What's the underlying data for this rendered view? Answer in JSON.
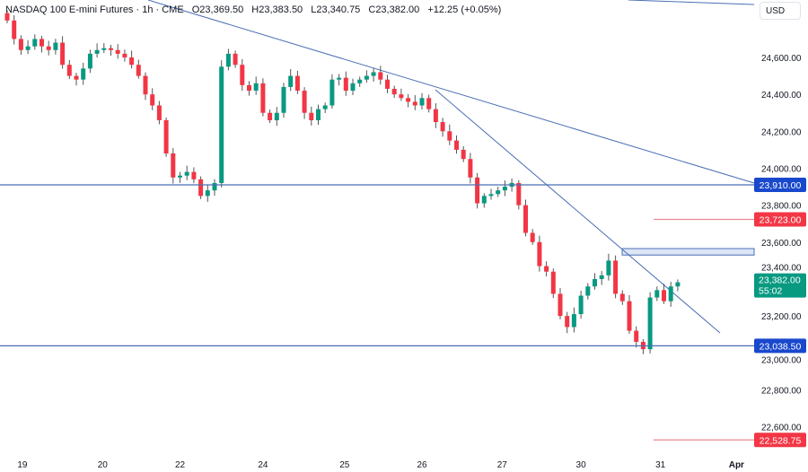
{
  "header": {
    "symbol": "NASDAQ 100 E-mini Futures · 1h · CME",
    "open": "O23,369.50",
    "high": "H23,383.50",
    "low": "L23,340.75",
    "close": "C23,382.00",
    "change": "+12.25 (+0.05%)"
  },
  "currency_button": "USD",
  "colors": {
    "up": "#089981",
    "down": "#f23645",
    "line": "#4a6fb5",
    "blue_label": "#1848cc",
    "red_label": "#f23645",
    "green_label": "#089981"
  },
  "chart_data": {
    "type": "candlestick",
    "title": "NASDAQ 100 E-mini Futures · 1h · CME",
    "ylim": [
      22460,
      24870
    ],
    "y_ticks": [
      "24,600.00",
      "24,400.00",
      "24,200.00",
      "24,000.00",
      "23,800.00",
      "23,600.00",
      "23,400.00",
      "23,200.00",
      "23,000.00",
      "22,800.00",
      "22,600.00"
    ],
    "y_tick_values": [
      24600,
      24400,
      24200,
      24000,
      23800,
      23600,
      23400,
      23200,
      23000,
      22800,
      22600
    ],
    "x_ticks": [
      "19",
      "20",
      "22",
      "24",
      "25",
      "26",
      "27",
      "30",
      "31",
      "Apr"
    ],
    "x_tick_index": [
      2.2,
      13.8,
      25,
      37,
      48.8,
      60,
      71.6,
      83,
      94.5,
      105.5
    ],
    "closes": [
      24800,
      24700,
      24640,
      24660,
      24700,
      24660,
      24640,
      24680,
      24560,
      24500,
      24480,
      24540,
      24620,
      24640,
      24650,
      24640,
      24620,
      24600,
      24560,
      24500,
      24400,
      24340,
      24260,
      24080,
      23950,
      23960,
      23980,
      23940,
      23850,
      23880,
      23920,
      24550,
      24620,
      24560,
      24450,
      24420,
      24460,
      24300,
      24260,
      24300,
      24440,
      24500,
      24420,
      24300,
      24260,
      24320,
      24340,
      24480,
      24490,
      24420,
      24460,
      24480,
      24500,
      24520,
      24480,
      24430,
      24400,
      24380,
      24360,
      24340,
      24380,
      24320,
      24250,
      24200,
      24150,
      24100,
      24050,
      23950,
      23810,
      23850,
      23860,
      23880,
      23900,
      23920,
      23800,
      23650,
      23600,
      23470,
      23440,
      23320,
      23200,
      23140,
      23210,
      23310,
      23360,
      23400,
      23420,
      23500,
      23320,
      23280,
      23120,
      23060,
      23020,
      23300,
      23340,
      23280,
      23360,
      23382
    ],
    "horizontal_levels": [
      {
        "value": 23910.0,
        "label": "23,910.00",
        "color": "blue_label",
        "span": "full"
      },
      {
        "value": 23723.0,
        "label": "23,723.00",
        "color": "red_label",
        "span": "short"
      },
      {
        "value": 23038.5,
        "label": "23,038.50",
        "color": "blue_label",
        "span": "full"
      },
      {
        "value": 22528.75,
        "label": "22,528.75",
        "color": "red_label",
        "span": "short"
      }
    ],
    "zone": {
      "from": 23530,
      "to": 23565
    },
    "last_price": {
      "label": "23,382.00",
      "countdown": "55:02",
      "value": 23382
    }
  }
}
